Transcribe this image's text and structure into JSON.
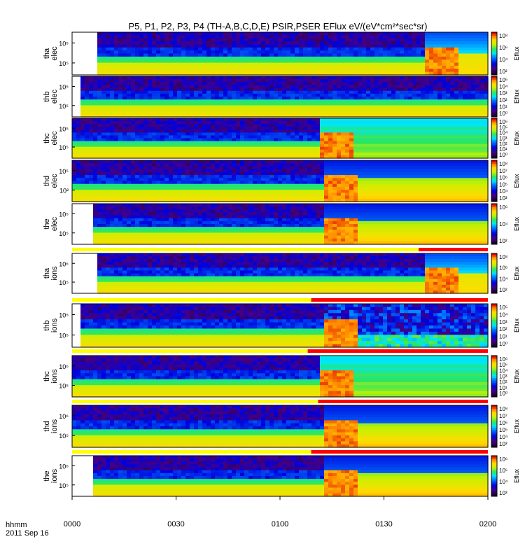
{
  "title": "P5, P1, P2, P3, P4 (TH-A,B,C,D,E) PSIR,PSER EFlux eV/(eV*cm²*sec*sr)",
  "footer": {
    "hhmm": "hhmm",
    "date": "2011 Sep 16"
  },
  "colorbar_unit": "Eflux",
  "colors": {
    "yellow_bar": "#ffff00",
    "red_bar": "#ff0000",
    "background": "#ffffff",
    "missing": "#ffffff"
  },
  "chart_data": {
    "type": "heatmap",
    "x_axis": {
      "ticks": [
        "0000",
        "0030",
        "0100",
        "0130",
        "0200"
      ],
      "range": [
        "00:00",
        "02:00"
      ],
      "unit": "hhmm"
    },
    "panels": [
      {
        "probe": "tha",
        "species": "elec",
        "label_line1": "tha",
        "label_line2": "elec",
        "yticks": [
          "10⁵",
          "10⁵"
        ],
        "cbar_ticks": [
          "10⁸",
          "10⁶",
          "10⁴",
          "10²"
        ],
        "data_start": "00:07",
        "transition": "01:41",
        "late_profile": "yellow-block"
      },
      {
        "probe": "thb",
        "species": "elec",
        "label_line1": "thb",
        "label_line2": "elec",
        "yticks": [
          "10⁵",
          "10⁵"
        ],
        "cbar_ticks": [
          "10⁶",
          "10⁴",
          "10³",
          "10²",
          "10¹",
          "10⁰"
        ],
        "data_start": "00:02",
        "transition": "none",
        "late_profile": "noisy"
      },
      {
        "probe": "thc",
        "species": "elec",
        "label_line1": "thc",
        "label_line2": "elec",
        "yticks": [
          "10⁵",
          "10⁵"
        ],
        "cbar_ticks": [
          "10⁶",
          "10⁵",
          "10⁴",
          "10³",
          "10²",
          "10¹",
          "10⁰"
        ],
        "data_start": "00:00",
        "transition": "01:11",
        "late_profile": "cyan-green"
      },
      {
        "probe": "thd",
        "species": "elec",
        "label_line1": "thd",
        "label_line2": "elec",
        "yticks": [
          "10⁵",
          "10²"
        ],
        "cbar_ticks": [
          "10⁸",
          "10⁷",
          "10⁶",
          "10⁵",
          "10⁴",
          "10³"
        ],
        "data_start": "00:00",
        "transition": "01:12",
        "late_profile": "blue-over-green"
      },
      {
        "probe": "the",
        "species": "elec",
        "label_line1": "the",
        "label_line2": "elec",
        "yticks": [
          "10⁵",
          "10⁵"
        ],
        "cbar_ticks": [
          "10⁶",
          "10⁴",
          "10²"
        ],
        "data_start": "00:05",
        "transition": "01:12",
        "late_profile": "blue-over-green"
      },
      {
        "probe": "tha",
        "species": "ions",
        "label_line1": "tha",
        "label_line2": "ions",
        "yticks": [
          "10⁶",
          "10⁵"
        ],
        "cbar_ticks": [
          "10⁸",
          "10⁶",
          "10⁴",
          "10²"
        ],
        "data_start": "00:07",
        "transition": "01:41",
        "late_profile": "yellow-block"
      },
      {
        "probe": "thb",
        "species": "ions",
        "label_line1": "thb",
        "label_line2": "ions",
        "yticks": [
          "10⁵",
          "10⁵"
        ],
        "cbar_ticks": [
          "10⁵",
          "10⁴",
          "10³",
          "10²",
          "10¹",
          "10⁰"
        ],
        "data_start": "00:02",
        "transition": "01:12",
        "late_profile": "noisy"
      },
      {
        "probe": "thc",
        "species": "ions",
        "label_line1": "thc",
        "label_line2": "ions",
        "yticks": [
          "10⁶",
          "10⁵"
        ],
        "cbar_ticks": [
          "10⁶",
          "10⁵",
          "10⁴",
          "10³",
          "10²",
          "10¹",
          "10⁰"
        ],
        "data_start": "00:00",
        "transition": "01:11",
        "late_profile": "cyan-green"
      },
      {
        "probe": "thd",
        "species": "ions",
        "label_line1": "thd",
        "label_line2": "ions",
        "yticks": [
          "10⁶",
          "10⁵"
        ],
        "cbar_ticks": [
          "10⁸",
          "10⁷",
          "10⁶",
          "10⁵",
          "10⁴",
          "10³"
        ],
        "data_start": "00:00",
        "transition": "01:12",
        "late_profile": "blue-over-green"
      },
      {
        "probe": "the",
        "species": "ions",
        "label_line1": "the",
        "label_line2": "ions",
        "yticks": [
          "10⁶",
          "10⁵"
        ],
        "cbar_ticks": [
          "10⁶",
          "10⁵",
          "10⁴",
          "10³"
        ],
        "data_start": "00:05",
        "transition": "01:12",
        "late_profile": "blue-over-green"
      }
    ],
    "flag_bars": [
      {
        "after_panel": "the-elec",
        "yellow_until": "01:40",
        "red_from": "01:40"
      },
      {
        "after_panel": "tha-ions",
        "yellow_until": "01:09",
        "red_from": "01:09"
      },
      {
        "after_panel": "thb-ions",
        "yellow_until": "01:08",
        "red_from": "01:08"
      },
      {
        "after_panel": "thc-ions",
        "yellow_until": "01:11",
        "red_from": "01:11"
      },
      {
        "after_panel": "thd-ions",
        "yellow_until": "01:09",
        "red_from": "01:09"
      }
    ]
  }
}
